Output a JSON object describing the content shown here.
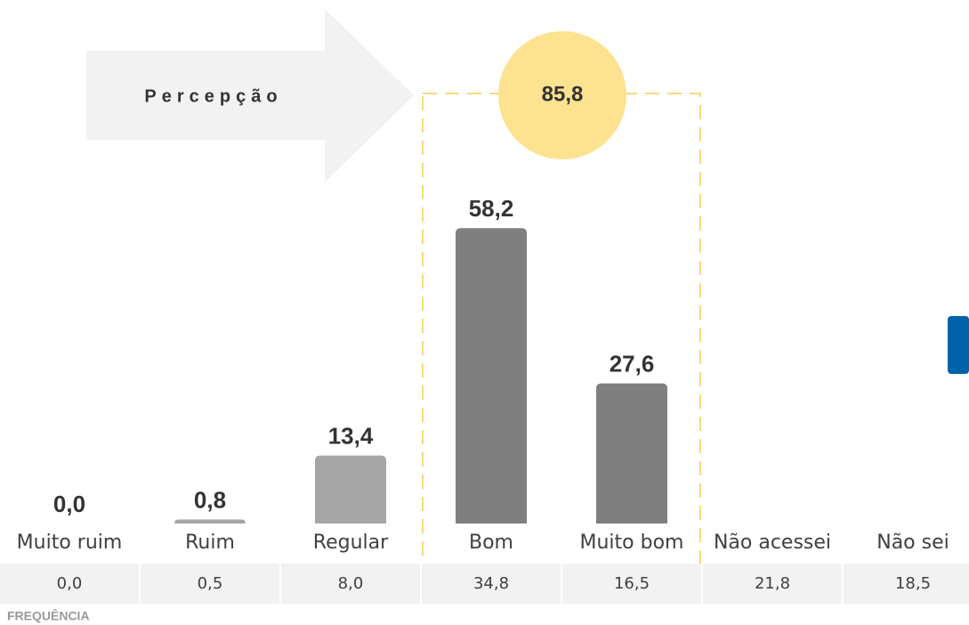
{
  "chart_data": {
    "type": "bar",
    "categories": [
      "Muito ruim",
      "Ruim",
      "Regular",
      "Bom",
      "Muito bom",
      "Não acessei",
      "Não sei"
    ],
    "values": [
      0.0,
      0.8,
      13.4,
      58.2,
      27.6,
      null,
      null
    ],
    "value_labels": [
      "0,0",
      "0,8",
      "13,4",
      "58,2",
      "27,6",
      null,
      null
    ],
    "colors": [
      "#a6a6a6",
      "#a6a6a6",
      "#a6a6a6",
      "#7f7f7f",
      "#7f7f7f",
      null,
      null
    ],
    "highlight": {
      "label": "Percepção",
      "value": 85.8,
      "value_label": "85,8"
    },
    "frequency": {
      "label": "FREQUÊNCIA",
      "values": [
        0.0,
        0.5,
        8.0,
        34.8,
        16.5,
        21.8,
        18.5
      ],
      "value_labels": [
        "0,0",
        "0,5",
        "8,0",
        "34,8",
        "16,5",
        "21,8",
        "18,5"
      ]
    }
  }
}
